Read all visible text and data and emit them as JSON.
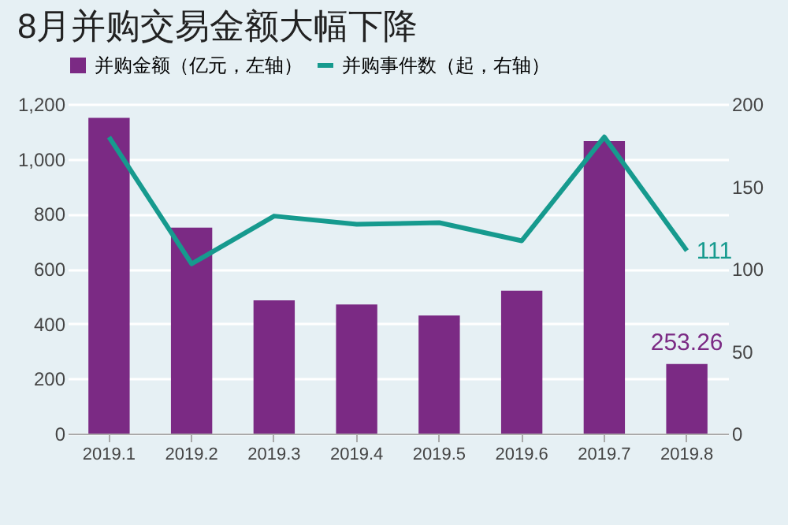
{
  "chart_data": {
    "type": "bar",
    "title": "8月并购交易金额大幅下降",
    "categories": [
      "2019.1",
      "2019.2",
      "2019.3",
      "2019.4",
      "2019.5",
      "2019.6",
      "2019.7",
      "2019.8"
    ],
    "series": [
      {
        "name": "并购金额（亿元，左轴）",
        "color": "#7b2a84",
        "values": [
          1150,
          750,
          485,
          470,
          430,
          520,
          1065,
          253.26
        ],
        "value_labels": [
          null,
          null,
          null,
          null,
          null,
          null,
          null,
          "253.26"
        ]
      },
      {
        "name": "并购事件数（起，右轴）",
        "type": "line",
        "axis": "y2",
        "color": "#169a8e",
        "values": [
          180,
          103,
          132,
          127,
          128,
          117,
          180,
          111
        ],
        "value_labels": [
          null,
          null,
          null,
          null,
          null,
          null,
          null,
          "111"
        ]
      }
    ],
    "ylim": [
      0,
      1200
    ],
    "yticks": [
      0,
      200,
      400,
      600,
      800,
      {
        "value": 1000,
        "label": "1,000"
      },
      {
        "value": 1200,
        "label": "1,200"
      }
    ],
    "y2lim": [
      0,
      200
    ],
    "y2ticks": [
      0,
      50,
      100,
      150,
      200
    ],
    "grid": "y",
    "legend": "top",
    "marker": "none",
    "line_style": "solid"
  }
}
